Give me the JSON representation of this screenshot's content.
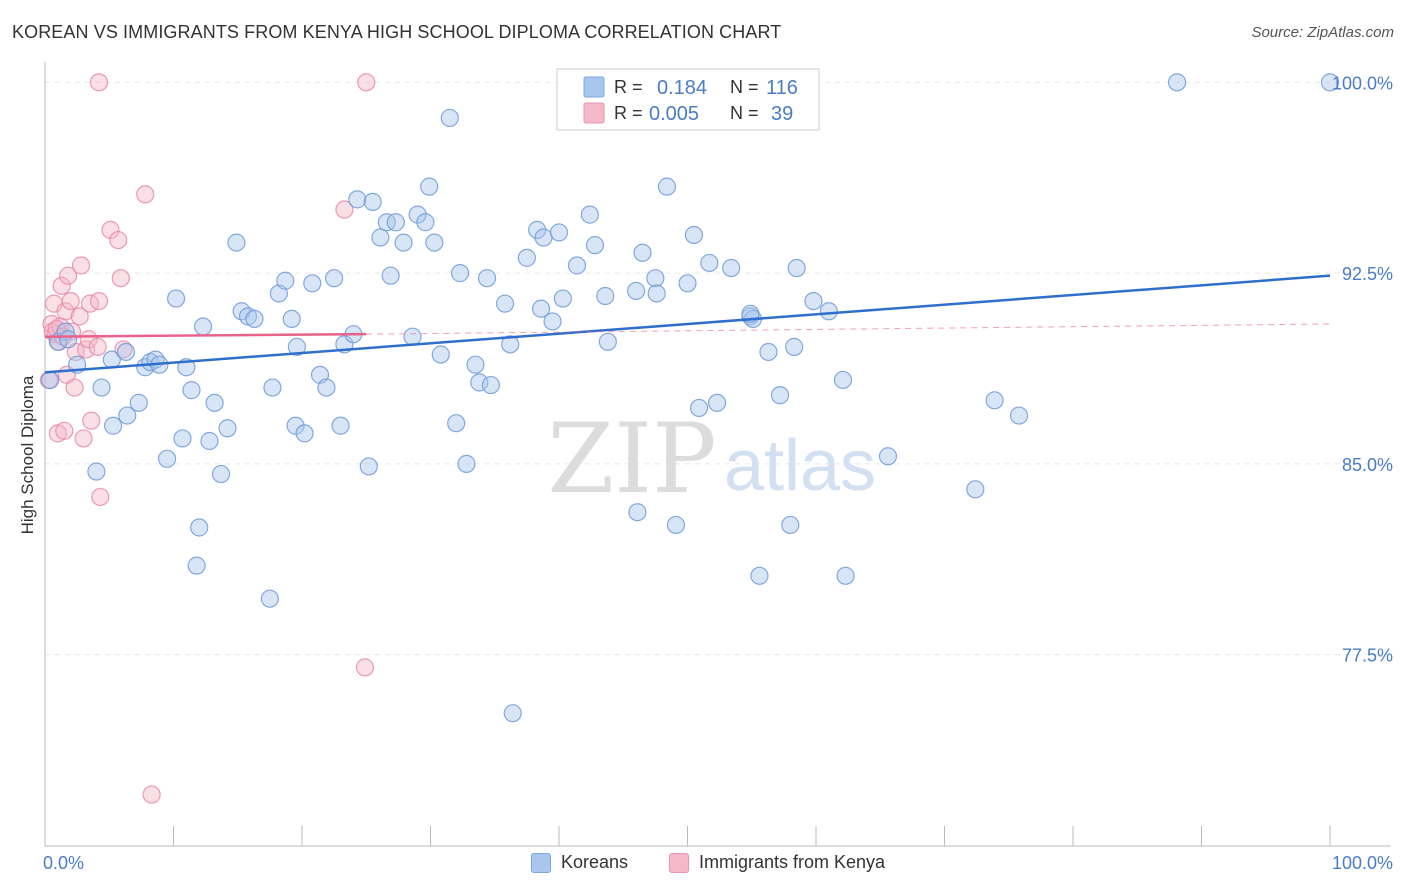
{
  "header": {
    "title": "KOREAN VS IMMIGRANTS FROM KENYA HIGH SCHOOL DIPLOMA CORRELATION CHART",
    "source": "Source: ZipAtlas.com"
  },
  "watermark": {
    "zip": "ZIP",
    "atlas": "atlas"
  },
  "legend": {
    "rows": [
      {
        "r_label": "R =",
        "r_value": "0.184",
        "n_label": "N =",
        "n_value": "116"
      },
      {
        "r_label": "R =",
        "r_value": "0.005",
        "n_label": "N =",
        "n_value": "39"
      }
    ]
  },
  "bottom_legend": {
    "koreans": "Koreans",
    "kenya": "Immigrants from Kenya"
  },
  "chart_data": {
    "type": "scatter",
    "title": "KOREAN VS IMMIGRANTS FROM KENYA HIGH SCHOOL DIPLOMA CORRELATION CHART",
    "ylabel": "High School Diploma",
    "xlabel": "",
    "xlim": [
      0,
      100
    ],
    "ylim": [
      71.0,
      100.8
    ],
    "x_tick_labels": [
      "0.0%",
      "100.0%"
    ],
    "y_tick_labels": [
      "100.0%",
      "92.5%",
      "85.0%",
      "77.5%"
    ],
    "y_ticks": [
      100.0,
      92.5,
      85.0,
      77.5
    ],
    "grid": true,
    "legend_position": "top-center",
    "colors": {
      "koreans": "#a9c6ee",
      "koreans_line": "#2f6fcc",
      "kenya": "#f5b8ca",
      "kenya_line": "#e8628a"
    },
    "series": [
      {
        "name": "Koreans",
        "R": 0.184,
        "N": 116,
        "trend": {
          "x": [
            0,
            100
          ],
          "y": [
            88.6,
            92.4
          ]
        },
        "points": [
          [
            0.4,
            88.3
          ],
          [
            1.0,
            89.8
          ],
          [
            1.6,
            90.2
          ],
          [
            1.8,
            89.9
          ],
          [
            2.5,
            88.9
          ],
          [
            4.0,
            84.7
          ],
          [
            4.4,
            88.0
          ],
          [
            5.2,
            89.1
          ],
          [
            5.3,
            86.5
          ],
          [
            6.3,
            89.4
          ],
          [
            6.4,
            86.9
          ],
          [
            7.3,
            87.4
          ],
          [
            7.8,
            88.8
          ],
          [
            8.2,
            89.0
          ],
          [
            8.6,
            89.1
          ],
          [
            8.9,
            88.9
          ],
          [
            9.5,
            85.2
          ],
          [
            10.2,
            91.5
          ],
          [
            10.7,
            86.0
          ],
          [
            11.0,
            88.8
          ],
          [
            11.4,
            87.9
          ],
          [
            11.8,
            81.0
          ],
          [
            12.0,
            82.5
          ],
          [
            12.8,
            85.9
          ],
          [
            13.2,
            87.4
          ],
          [
            13.7,
            84.6
          ],
          [
            14.2,
            86.4
          ],
          [
            14.9,
            93.7
          ],
          [
            15.3,
            91.0
          ],
          [
            15.8,
            90.8
          ],
          [
            16.3,
            90.7
          ],
          [
            17.5,
            79.7
          ],
          [
            17.7,
            88.0
          ],
          [
            18.2,
            91.7
          ],
          [
            18.7,
            92.2
          ],
          [
            19.2,
            90.7
          ],
          [
            19.5,
            86.5
          ],
          [
            19.6,
            89.6
          ],
          [
            20.2,
            86.2
          ],
          [
            20.8,
            92.1
          ],
          [
            21.4,
            88.5
          ],
          [
            21.9,
            88.0
          ],
          [
            22.5,
            92.3
          ],
          [
            23.0,
            86.5
          ],
          [
            23.3,
            89.7
          ],
          [
            24.0,
            90.1
          ],
          [
            24.3,
            95.4
          ],
          [
            25.2,
            84.9
          ],
          [
            25.5,
            95.3
          ],
          [
            26.1,
            93.9
          ],
          [
            26.6,
            94.5
          ],
          [
            26.9,
            92.4
          ],
          [
            27.3,
            94.5
          ],
          [
            27.9,
            93.7
          ],
          [
            28.6,
            90.0
          ],
          [
            29.0,
            94.8
          ],
          [
            29.6,
            94.5
          ],
          [
            29.9,
            95.9
          ],
          [
            30.3,
            93.7
          ],
          [
            30.8,
            89.3
          ],
          [
            31.5,
            98.6
          ],
          [
            32.0,
            86.6
          ],
          [
            32.3,
            92.5
          ],
          [
            32.8,
            85.0
          ],
          [
            33.5,
            88.9
          ],
          [
            33.8,
            88.2
          ],
          [
            34.4,
            92.3
          ],
          [
            34.7,
            88.1
          ],
          [
            35.8,
            91.3
          ],
          [
            36.2,
            89.7
          ],
          [
            36.4,
            75.2
          ],
          [
            37.5,
            93.1
          ],
          [
            38.3,
            94.2
          ],
          [
            38.6,
            91.1
          ],
          [
            38.8,
            93.9
          ],
          [
            39.5,
            90.6
          ],
          [
            40.0,
            94.1
          ],
          [
            40.3,
            91.5
          ],
          [
            41.4,
            92.8
          ],
          [
            42.4,
            94.8
          ],
          [
            42.8,
            93.6
          ],
          [
            43.6,
            91.6
          ],
          [
            46.0,
            91.8
          ],
          [
            46.1,
            83.1
          ],
          [
            46.5,
            93.3
          ],
          [
            47.5,
            92.3
          ],
          [
            47.6,
            91.7
          ],
          [
            48.4,
            95.9
          ],
          [
            49.1,
            82.6
          ],
          [
            50.0,
            92.1
          ],
          [
            50.5,
            94.0
          ],
          [
            50.9,
            87.2
          ],
          [
            51.7,
            92.9
          ],
          [
            52.3,
            87.4
          ],
          [
            53.4,
            92.7
          ],
          [
            54.9,
            90.8
          ],
          [
            55.1,
            90.7
          ],
          [
            55.6,
            80.6
          ],
          [
            56.3,
            89.4
          ],
          [
            57.2,
            87.7
          ],
          [
            58.0,
            82.6
          ],
          [
            58.3,
            89.6
          ],
          [
            58.5,
            92.7
          ],
          [
            59.8,
            91.4
          ],
          [
            61.0,
            91.0
          ],
          [
            62.1,
            88.3
          ],
          [
            62.3,
            80.6
          ],
          [
            65.6,
            85.3
          ],
          [
            72.4,
            84.0
          ],
          [
            73.9,
            87.5
          ],
          [
            75.8,
            86.9
          ],
          [
            88.1,
            100.0
          ],
          [
            100.0,
            100.0
          ],
          [
            54.9,
            90.9
          ],
          [
            43.8,
            89.8
          ],
          [
            12.3,
            90.4
          ]
        ]
      },
      {
        "name": "Immigrants from Kenya",
        "R": 0.005,
        "N": 39,
        "trend": {
          "x": [
            0,
            25
          ],
          "y": [
            90.0,
            90.1
          ]
        },
        "points": [
          [
            0.3,
            88.3
          ],
          [
            0.5,
            90.5
          ],
          [
            0.6,
            90.2
          ],
          [
            0.7,
            91.3
          ],
          [
            0.8,
            90.1
          ],
          [
            1.0,
            86.2
          ],
          [
            1.1,
            89.8
          ],
          [
            1.2,
            90.4
          ],
          [
            1.3,
            92.0
          ],
          [
            1.5,
            86.3
          ],
          [
            1.6,
            91.0
          ],
          [
            1.7,
            88.5
          ],
          [
            1.8,
            92.4
          ],
          [
            2.0,
            91.4
          ],
          [
            2.1,
            90.2
          ],
          [
            2.3,
            88.0
          ],
          [
            2.4,
            89.4
          ],
          [
            2.7,
            90.8
          ],
          [
            2.8,
            92.8
          ],
          [
            3.0,
            86.0
          ],
          [
            3.2,
            89.5
          ],
          [
            3.4,
            89.9
          ],
          [
            3.5,
            91.3
          ],
          [
            3.6,
            86.7
          ],
          [
            4.1,
            89.6
          ],
          [
            4.2,
            91.4
          ],
          [
            4.3,
            83.7
          ],
          [
            5.1,
            94.2
          ],
          [
            5.7,
            93.8
          ],
          [
            5.9,
            92.3
          ],
          [
            6.1,
            89.5
          ],
          [
            7.8,
            95.6
          ],
          [
            8.3,
            72.0
          ],
          [
            23.3,
            95.0
          ],
          [
            24.9,
            77.0
          ],
          [
            25.0,
            100.0
          ],
          [
            4.2,
            100.0
          ],
          [
            0.9,
            90.3
          ],
          [
            1.4,
            90.0
          ]
        ]
      }
    ]
  }
}
